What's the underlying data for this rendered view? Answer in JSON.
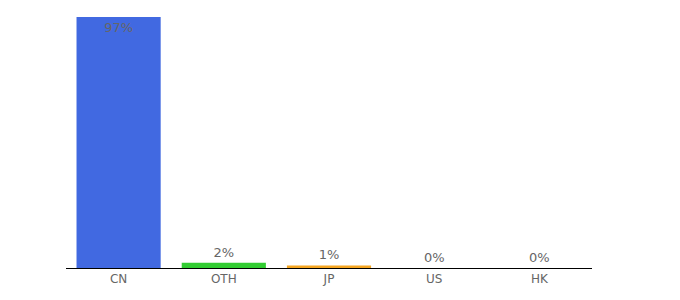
{
  "chart_data": {
    "type": "bar",
    "categories": [
      "CN",
      "OTH",
      "JP",
      "US",
      "HK"
    ],
    "values": [
      97,
      2,
      1,
      0,
      0
    ],
    "value_labels": [
      "97%",
      "2%",
      "1%",
      "0%",
      "0%"
    ],
    "colors": [
      "#4169e1",
      "#32cd32",
      "#f5a623",
      "#e8433a",
      "#9b59b6"
    ],
    "ylim": [
      0,
      97
    ],
    "grid": false,
    "data_labels": true,
    "tick_labels": "x"
  }
}
